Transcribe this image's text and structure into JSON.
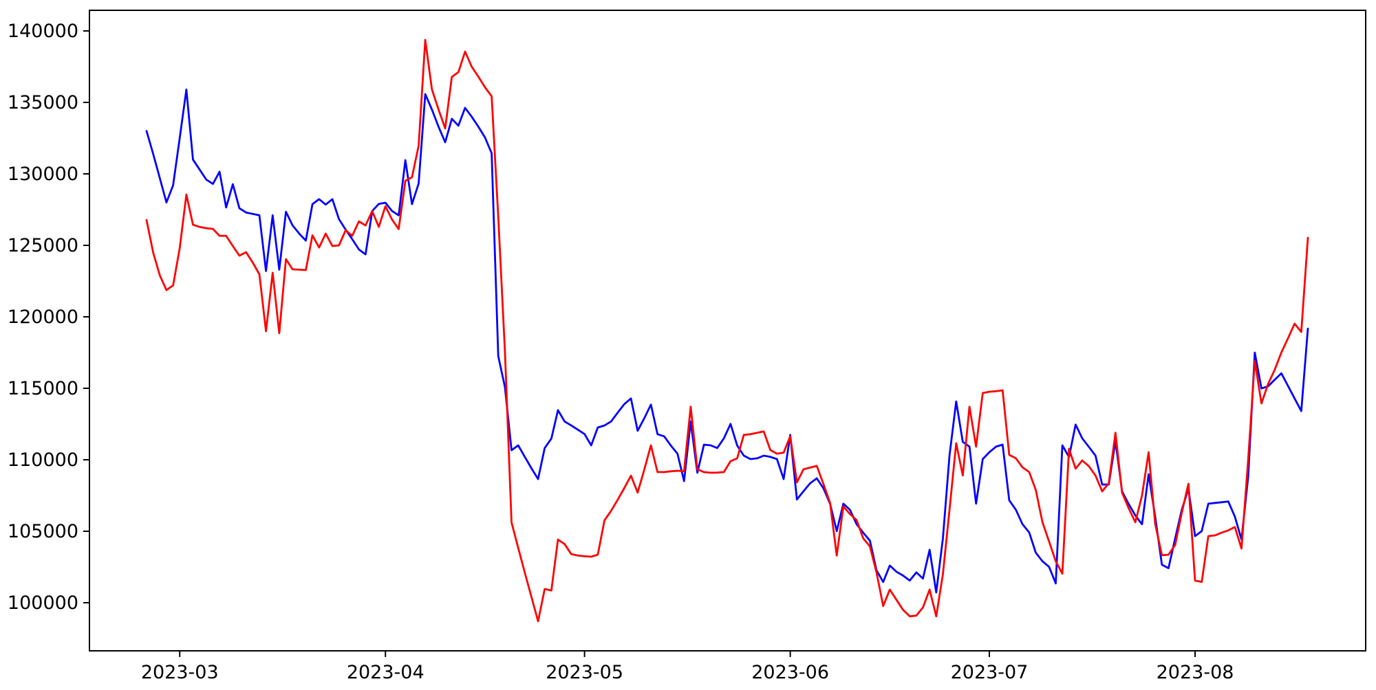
{
  "figure": {
    "background": "#ffffff",
    "axis_color": "#000000"
  },
  "chart_data": {
    "type": "line",
    "title": "",
    "xlabel": "",
    "ylabel": "",
    "grid": false,
    "legend": null,
    "x_axis": {
      "start_date": "2023-02-24",
      "frequency": "daily",
      "tick_labels": [
        "2023-03",
        "2023-04",
        "2023-05",
        "2023-06",
        "2023-07",
        "2023-08"
      ]
    },
    "y_axis": {
      "tick_values": [
        100000,
        105000,
        110000,
        115000,
        120000,
        125000,
        130000,
        135000,
        140000
      ],
      "ylim": [
        96600,
        141400
      ]
    },
    "series": [
      {
        "name": "series-blue",
        "color": "#0000ff",
        "values": [
          133000,
          131400,
          129700,
          128000,
          129200,
          132500,
          135900,
          131000,
          130300,
          129600,
          129300,
          130150,
          127650,
          129280,
          127590,
          127300,
          127200,
          127100,
          123200,
          127100,
          123300,
          127350,
          126400,
          125820,
          125330,
          127880,
          128230,
          127850,
          128230,
          126830,
          126100,
          125430,
          124710,
          124370,
          127400,
          127900,
          127980,
          127400,
          127100,
          130960,
          127880,
          129330,
          135580,
          134500,
          133300,
          132210,
          133850,
          133370,
          134620,
          134000,
          133300,
          132550,
          131440,
          117250,
          115090,
          110670,
          111010,
          110200,
          109400,
          108650,
          110820,
          111480,
          113470,
          112680,
          112400,
          112100,
          111800,
          111010,
          112260,
          112400,
          112680,
          113300,
          113900,
          114290,
          112030,
          112900,
          113860,
          111790,
          111640,
          111000,
          110430,
          108510,
          112680,
          109090,
          111060,
          111010,
          110820,
          111500,
          112510,
          111000,
          110290,
          110050,
          110100,
          110290,
          110200,
          110050,
          108650,
          111740,
          107220,
          107800,
          108360,
          108700,
          108000,
          106930,
          105010,
          106930,
          106500,
          105490,
          104900,
          104340,
          102270,
          101450,
          102600,
          102170,
          101900,
          101550,
          102120,
          101690,
          103700,
          100720,
          104500,
          110300,
          114080,
          111250,
          110920,
          106930,
          110050,
          110530,
          110920,
          111060,
          107170,
          106500,
          105490,
          104920,
          103500,
          102900,
          102510,
          101350,
          111010,
          110190,
          112460,
          111500,
          110900,
          110290,
          108270,
          108270,
          111310,
          107790,
          106900,
          106100,
          105490,
          108990,
          106000,
          102660,
          102420,
          104500,
          106500,
          107980,
          104660,
          105010,
          106930,
          106980,
          107030,
          107080,
          106020,
          104420,
          108800,
          117500,
          114990,
          115140,
          115600,
          116050,
          115170,
          114290,
          113410,
          119180
        ]
      },
      {
        "name": "series-red",
        "color": "#ff0000",
        "values": [
          126770,
          124500,
          122900,
          121870,
          122200,
          124800,
          128560,
          126440,
          126290,
          126200,
          126150,
          125670,
          125670,
          124950,
          124280,
          124520,
          123800,
          122980,
          118990,
          123080,
          118850,
          124040,
          123320,
          123300,
          123270,
          125700,
          124850,
          125820,
          124950,
          125000,
          126060,
          125670,
          126680,
          126390,
          127400,
          126290,
          127740,
          126800,
          126140,
          129520,
          129760,
          131970,
          139375,
          135910,
          134500,
          133180,
          136780,
          137120,
          138560,
          137500,
          136800,
          136060,
          135430,
          127000,
          117600,
          105620,
          103840,
          102100,
          100400,
          98700,
          100960,
          100850,
          104420,
          104100,
          103400,
          103300,
          103250,
          103220,
          103360,
          105760,
          106430,
          107200,
          108030,
          108890,
          107700,
          109300,
          111010,
          109140,
          109140,
          109190,
          109230,
          109200,
          113710,
          109330,
          109140,
          109090,
          109100,
          109140,
          109900,
          110100,
          111740,
          111790,
          111890,
          111980,
          110680,
          110430,
          110500,
          111640,
          108420,
          109330,
          109450,
          109570,
          108300,
          106980,
          103300,
          106740,
          106200,
          105780,
          104500,
          103940,
          102120,
          99770,
          100920,
          100200,
          99500,
          99050,
          99100,
          99670,
          100920,
          99050,
          102000,
          106500,
          111160,
          108900,
          113710,
          110920,
          114670,
          114760,
          114800,
          114860,
          110340,
          110100,
          109470,
          109140,
          107890,
          105630,
          104290,
          102900,
          102030,
          110770,
          109380,
          109950,
          109550,
          108900,
          107790,
          108360,
          111890,
          107700,
          106600,
          105630,
          107500,
          110530,
          105500,
          103320,
          103360,
          104050,
          106300,
          108320,
          101550,
          101450,
          104660,
          104710,
          104900,
          105060,
          105300,
          103790,
          110000,
          116920,
          113940,
          115300,
          116300,
          117500,
          118500,
          119520,
          118940,
          125530
        ]
      }
    ]
  }
}
